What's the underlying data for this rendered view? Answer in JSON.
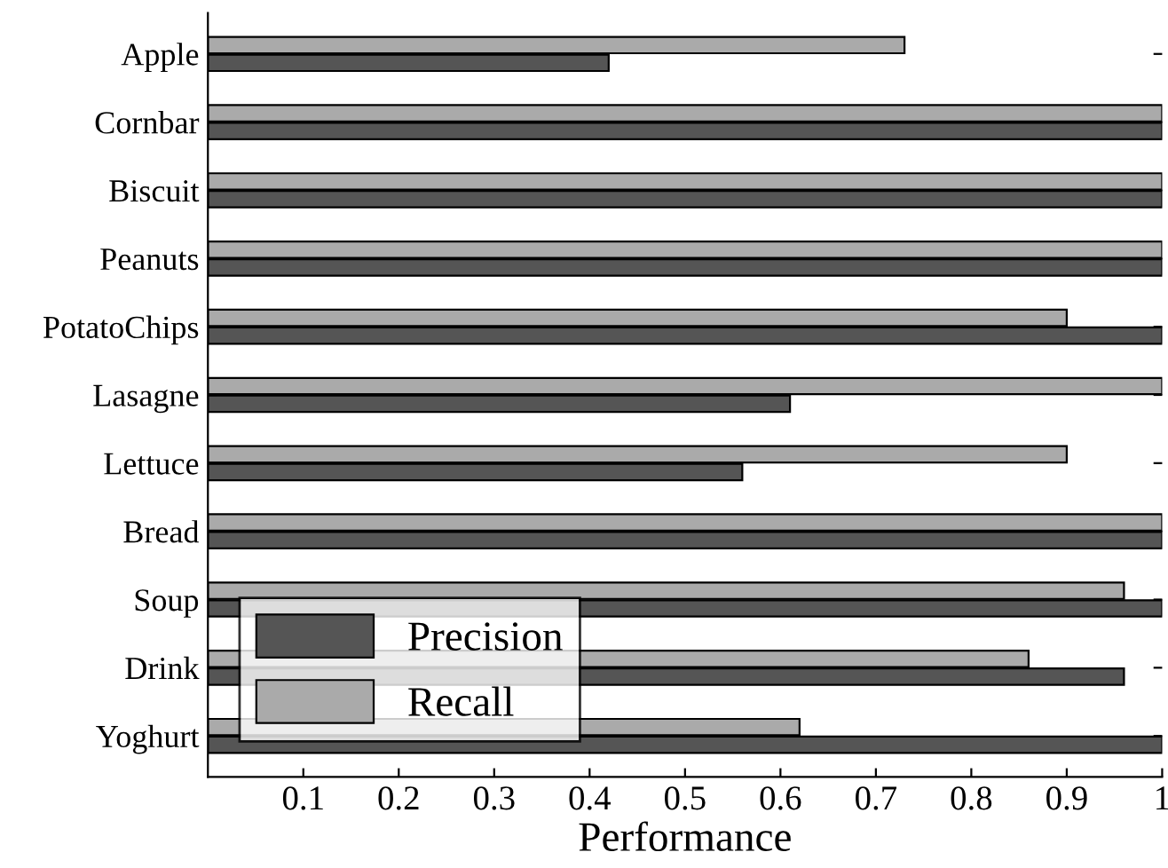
{
  "chart_data": {
    "type": "bar",
    "orientation": "horizontal",
    "xlabel": "Performance",
    "categories": [
      "Apple",
      "Cornbar",
      "Biscuit",
      "Peanuts",
      "PotatoChips",
      "Lasagne",
      "Lettuce",
      "Bread",
      "Soup",
      "Drink",
      "Yoghurt"
    ],
    "series": [
      {
        "name": "Precision",
        "color": "#555555",
        "values": [
          0.42,
          1,
          1,
          1,
          1,
          0.61,
          0.56,
          1,
          1,
          0.96,
          1
        ]
      },
      {
        "name": "Recall",
        "color": "#aaaaaa",
        "values": [
          0.73,
          1,
          1,
          1,
          0.9,
          1,
          0.9,
          1,
          0.96,
          0.86,
          0.62
        ]
      }
    ],
    "xlim": [
      0,
      1
    ],
    "xticks": [
      0.1,
      0.2,
      0.3,
      0.4,
      0.5,
      0.6,
      0.7,
      0.8,
      0.9,
      1
    ],
    "legend": "bottom left",
    "grid": false
  }
}
